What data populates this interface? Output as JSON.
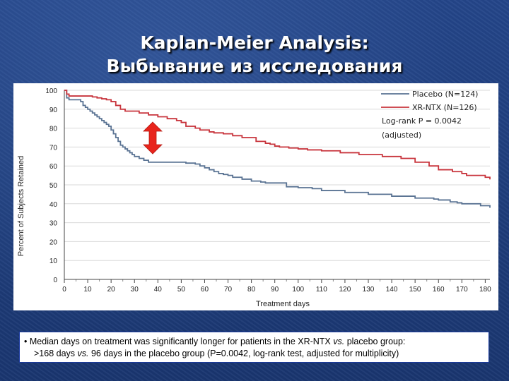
{
  "slide": {
    "title_line1": "Kaplan-Meier Analysis:",
    "title_line2": "Выбывание из исследования"
  },
  "note": {
    "bullet": "•",
    "line1_a": "Median days on treatment was significantly longer for patients in the XR-NTX ",
    "line1_vs": "vs.",
    "line1_b": " placebo group:",
    "line2_a": ">168 days ",
    "line2_vs": "vs.",
    "line2_b": " 96 days in the placebo group (P=0.0042, log-rank test, adjusted for multiplicity)"
  },
  "chart_data": {
    "type": "line",
    "step": true,
    "xlabel": "Treatment days",
    "ylabel": "Percent of Subjects Retained",
    "xlim": [
      0,
      182
    ],
    "ylim": [
      0,
      100
    ],
    "xticks": [
      0,
      10,
      20,
      30,
      40,
      50,
      60,
      70,
      80,
      90,
      100,
      110,
      120,
      130,
      140,
      150,
      160,
      170,
      180
    ],
    "yticks": [
      0,
      10,
      20,
      30,
      40,
      50,
      60,
      70,
      80,
      90,
      100
    ],
    "grid": true,
    "legend_position": "top-right",
    "annotation_text_1": "Log-rank P = 0.0042",
    "annotation_text_2": "(adjusted)",
    "arrow_color": "#e8241c",
    "series": [
      {
        "name": "Placebo (N=124)",
        "color": "#5a7393",
        "x": [
          0,
          1,
          2,
          6,
          7,
          8,
          9,
          10,
          11,
          12,
          13,
          14,
          15,
          16,
          17,
          18,
          19,
          20,
          21,
          22,
          23,
          24,
          25,
          26,
          27,
          28,
          29,
          30,
          32,
          34,
          36,
          44,
          52,
          56,
          58,
          60,
          62,
          64,
          66,
          68,
          70,
          72,
          76,
          80,
          84,
          86,
          88,
          94,
          95,
          100,
          106,
          110,
          120,
          130,
          140,
          150,
          158,
          160,
          165,
          168,
          170,
          172,
          178,
          182
        ],
        "y": [
          100,
          96,
          95,
          95,
          94,
          92,
          91,
          90,
          89,
          88,
          87,
          86,
          85,
          84,
          83,
          82,
          81,
          79,
          77,
          75,
          73,
          71,
          70,
          69,
          68,
          67,
          66,
          65,
          64,
          63,
          62,
          62,
          61.5,
          61,
          60,
          59,
          58,
          57,
          56,
          55.5,
          55,
          54,
          53,
          52,
          51.5,
          51,
          51,
          51,
          49,
          48.5,
          48,
          47,
          46,
          45,
          44,
          43,
          42.5,
          42,
          41,
          40.5,
          40,
          40,
          39,
          38
        ]
      },
      {
        "name": "XR-NTX (N=126)",
        "color": "#c8343c",
        "x": [
          0,
          1,
          2,
          10,
          12,
          14,
          16,
          18,
          20,
          22,
          24,
          26,
          32,
          36,
          40,
          44,
          48,
          50,
          52,
          56,
          58,
          62,
          64,
          68,
          72,
          76,
          82,
          86,
          88,
          90,
          92,
          96,
          100,
          104,
          110,
          118,
          126,
          136,
          144,
          150,
          156,
          160,
          166,
          170,
          172,
          174,
          180,
          182
        ],
        "y": [
          100,
          98,
          97,
          97,
          96.5,
          96,
          95.5,
          95,
          94,
          92,
          90,
          89,
          88,
          87,
          86,
          85,
          84,
          83,
          81,
          80,
          79,
          78,
          77.5,
          77,
          76,
          75,
          73,
          72,
          71.5,
          70.5,
          70,
          69.5,
          69,
          68.5,
          68,
          67,
          66,
          65,
          64,
          62,
          60,
          58,
          57,
          56,
          55,
          55,
          54,
          53
        ]
      }
    ]
  }
}
